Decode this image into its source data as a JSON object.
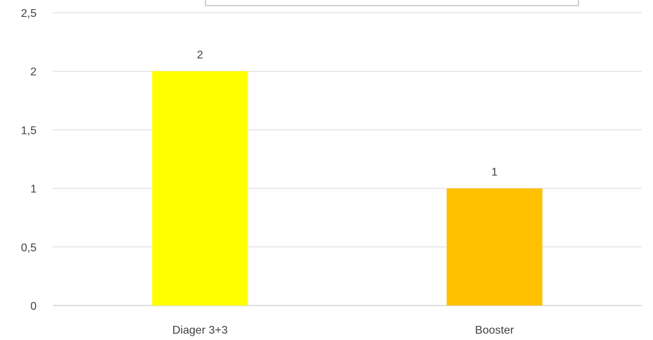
{
  "chart_data": {
    "type": "bar",
    "categories": [
      "Diager 3+3",
      "Booster"
    ],
    "values": [
      2,
      1
    ],
    "data_labels": [
      "2",
      "1"
    ],
    "title": "",
    "xlabel": "",
    "ylabel": "",
    "ylim": [
      0,
      2.5
    ],
    "yticks": [
      0,
      0.5,
      1,
      1.5,
      2,
      2.5
    ],
    "ytick_labels": [
      "0",
      "0,5",
      "1",
      "1,5",
      "2",
      "2,5"
    ],
    "grid": true,
    "legend": "top (partially visible, empty)",
    "colors": {
      "bars": [
        "#FFFF00",
        "#FFC000"
      ],
      "grid": "#D9D9D9",
      "axis": "#BFBFBF",
      "text": "#404040",
      "legend_border": "#A6A6A6"
    }
  }
}
